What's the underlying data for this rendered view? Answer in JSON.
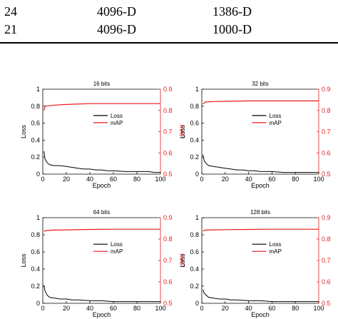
{
  "table": {
    "rows": [
      [
        "24",
        "4096-D",
        "1386-D"
      ],
      [
        "21",
        "4096-D",
        "1000-D"
      ]
    ]
  },
  "chart_data": [
    {
      "type": "line",
      "title": "16 bits",
      "xlabel": "Epoch",
      "ylabel": "Loss",
      "y2label": "mAP",
      "xlim": [
        0,
        100
      ],
      "ylim": [
        0,
        1
      ],
      "y2lim": [
        0.5,
        0.9
      ],
      "xticks": [
        "0",
        "20",
        "40",
        "60",
        "80",
        "100"
      ],
      "yticks": [
        "0",
        "0.2",
        "0.4",
        "0.6",
        "0.8",
        "1"
      ],
      "y2ticks": [
        "0.5",
        "0.6",
        "0.7",
        "0.8",
        "0.9"
      ],
      "legend": [
        "Loss",
        "mAP"
      ],
      "legend_placement": "center",
      "colors": {
        "loss": "#000000",
        "map": "#e8191c"
      },
      "series": [
        {
          "name": "Loss",
          "axis": "left",
          "x": [
            1,
            2,
            4,
            6,
            10,
            15,
            20,
            25,
            30,
            35,
            40,
            45,
            50,
            55,
            60,
            70,
            80,
            90,
            95,
            100
          ],
          "values": [
            0.27,
            0.17,
            0.13,
            0.11,
            0.1,
            0.1,
            0.09,
            0.08,
            0.07,
            0.06,
            0.06,
            0.05,
            0.05,
            0.04,
            0.04,
            0.03,
            0.03,
            0.03,
            0.02,
            0.02
          ]
        },
        {
          "name": "mAP",
          "axis": "right",
          "x": [
            1,
            2,
            5,
            10,
            20,
            40,
            60,
            80,
            100
          ],
          "values": [
            0.8,
            0.82,
            0.822,
            0.825,
            0.828,
            0.832,
            0.832,
            0.832,
            0.832
          ]
        }
      ]
    },
    {
      "type": "line",
      "title": "32 bits",
      "xlabel": "Epoch",
      "ylabel": "Loss",
      "y2label": "mAP",
      "xlim": [
        0,
        100
      ],
      "ylim": [
        0,
        1
      ],
      "y2lim": [
        0.5,
        0.9
      ],
      "xticks": [
        "0",
        "20",
        "40",
        "60",
        "80",
        "100"
      ],
      "yticks": [
        "0",
        "0.2",
        "0.4",
        "0.6",
        "0.8",
        "1"
      ],
      "y2ticks": [
        "0.5",
        "0.6",
        "0.7",
        "0.8",
        "0.9"
      ],
      "legend": [
        "Loss",
        "mAP"
      ],
      "legend_placement": "center",
      "colors": {
        "loss": "#000000",
        "map": "#e8191c"
      },
      "series": [
        {
          "name": "Loss",
          "axis": "left",
          "x": [
            1,
            2,
            4,
            6,
            10,
            15,
            20,
            25,
            30,
            35,
            40,
            45,
            50,
            60,
            70,
            80,
            90,
            100
          ],
          "values": [
            0.23,
            0.16,
            0.12,
            0.1,
            0.09,
            0.08,
            0.07,
            0.06,
            0.05,
            0.05,
            0.04,
            0.04,
            0.03,
            0.03,
            0.02,
            0.02,
            0.02,
            0.02
          ]
        },
        {
          "name": "mAP",
          "axis": "right",
          "x": [
            1,
            3,
            10,
            20,
            40,
            60,
            80,
            100
          ],
          "values": [
            0.83,
            0.84,
            0.842,
            0.843,
            0.845,
            0.845,
            0.845,
            0.845
          ]
        }
      ]
    },
    {
      "type": "line",
      "title": "64 bits",
      "xlabel": "Epoch",
      "ylabel": "Loss",
      "y2label": "mAP",
      "xlim": [
        0,
        100
      ],
      "ylim": [
        0,
        1
      ],
      "y2lim": [
        0.5,
        0.9
      ],
      "xticks": [
        "0",
        "20",
        "40",
        "60",
        "80",
        "100"
      ],
      "yticks": [
        "0",
        "0.2",
        "0.4",
        "0.6",
        "0.8",
        "1"
      ],
      "y2ticks": [
        "0.5",
        "0.6",
        "0.7",
        "0.8",
        "0.9"
      ],
      "legend": [
        "Loss",
        "mAP"
      ],
      "legend_placement": "center",
      "colors": {
        "loss": "#000000",
        "map": "#e8191c"
      },
      "series": [
        {
          "name": "Loss",
          "axis": "left",
          "x": [
            1,
            2,
            4,
            6,
            10,
            15,
            20,
            25,
            30,
            40,
            50,
            60,
            70,
            80,
            90,
            100
          ],
          "values": [
            0.21,
            0.14,
            0.09,
            0.07,
            0.06,
            0.05,
            0.05,
            0.04,
            0.04,
            0.03,
            0.03,
            0.02,
            0.02,
            0.02,
            0.02,
            0.02
          ]
        },
        {
          "name": "mAP",
          "axis": "right",
          "x": [
            1,
            3,
            10,
            20,
            40,
            60,
            80,
            100
          ],
          "values": [
            0.836,
            0.84,
            0.842,
            0.843,
            0.845,
            0.846,
            0.846,
            0.846
          ]
        }
      ]
    },
    {
      "type": "line",
      "title": "128 bits",
      "xlabel": "Epoch",
      "ylabel": "Loss",
      "y2label": "mAP",
      "xlim": [
        0,
        100
      ],
      "ylim": [
        0,
        1
      ],
      "y2lim": [
        0.5,
        0.9
      ],
      "xticks": [
        "0",
        "20",
        "40",
        "60",
        "80",
        "100"
      ],
      "yticks": [
        "0",
        "0.2",
        "0.4",
        "0.6",
        "0.8",
        "1"
      ],
      "y2ticks": [
        "0.5",
        "0.6",
        "0.7",
        "0.8",
        "0.9"
      ],
      "legend": [
        "Loss",
        "mAP"
      ],
      "legend_placement": "center",
      "colors": {
        "loss": "#000000",
        "map": "#e8191c"
      },
      "series": [
        {
          "name": "Loss",
          "axis": "left",
          "x": [
            1,
            2,
            4,
            6,
            10,
            15,
            20,
            25,
            30,
            40,
            50,
            60,
            70,
            80,
            90,
            100
          ],
          "values": [
            0.16,
            0.12,
            0.09,
            0.07,
            0.06,
            0.05,
            0.05,
            0.04,
            0.04,
            0.03,
            0.03,
            0.02,
            0.02,
            0.02,
            0.02,
            0.02
          ]
        },
        {
          "name": "mAP",
          "axis": "right",
          "x": [
            1,
            3,
            10,
            20,
            40,
            60,
            80,
            100
          ],
          "values": [
            0.838,
            0.842,
            0.843,
            0.844,
            0.845,
            0.846,
            0.846,
            0.846
          ]
        }
      ]
    }
  ]
}
